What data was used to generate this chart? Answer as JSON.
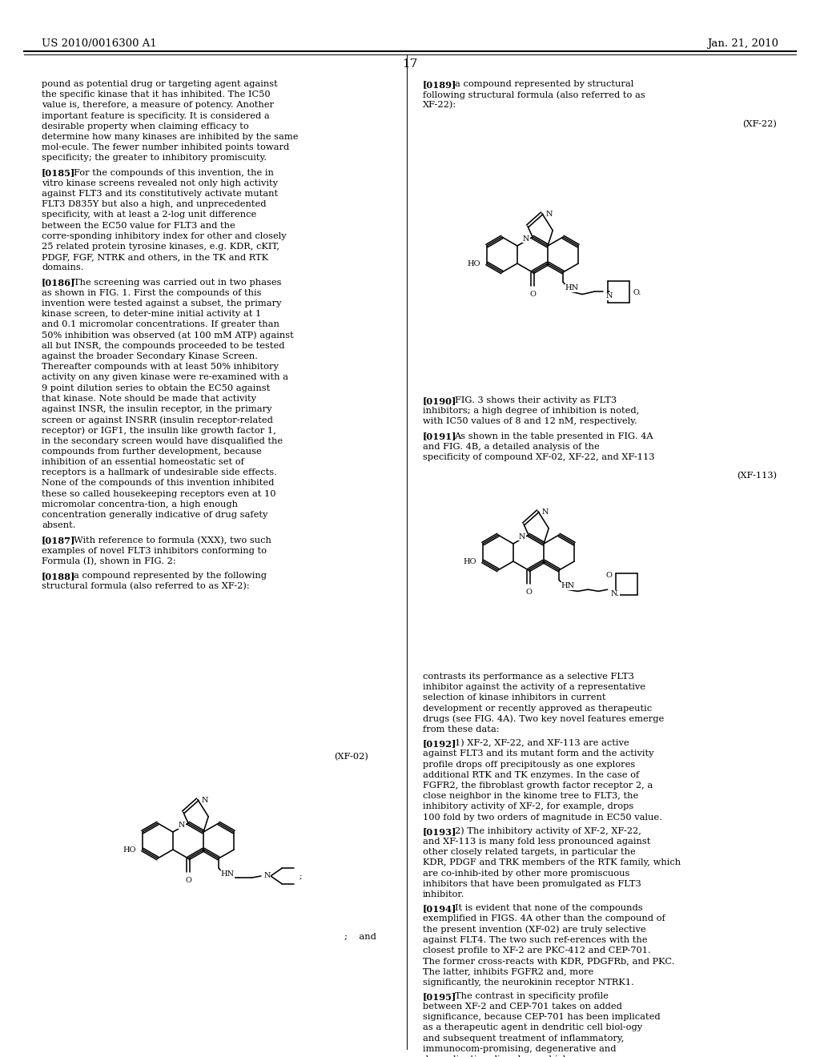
{
  "page_header_left": "US 2010/0016300 A1",
  "page_header_right": "Jan. 21, 2010",
  "page_number": "17",
  "bg": "#ffffff",
  "fg": "#000000",
  "left_paragraphs": [
    {
      "tag": "",
      "body": "pound as potential drug or targeting agent against the specific kinase that it has inhibited. The IC50 value is, therefore, a measure of potency. Another important feature is specificity. It is considered a desirable property when claiming efficacy to determine how many kinases are inhibited by the same mol-ecule. The fewer number inhibited points toward specificity; the greater to inhibitory promiscuity."
    },
    {
      "tag": "[0185]",
      "body": "For the compounds of this invention, the in vitro kinase screens revealed not only high activity against FLT3 and its constitutively activate mutant FLT3 D835Y but also a high, and unprecedented specificity, with at least a 2-log unit difference between the EC50 value for FLT3 and the corre-sponding inhibitory index for other and closely 25 related protein tyrosine kinases, e.g. KDR, cKIT, PDGF, FGF, NTRK and others, in the TK and RTK domains."
    },
    {
      "tag": "[0186]",
      "body": "The screening was carried out in two phases as shown in FIG. 1. First the compounds of this invention were tested against a subset, the primary kinase screen, to deter-mine initial activity at 1 and 0.1 micromolar concentrations. If greater than 50% inhibition was observed (at 100 mM ATP) against all but INSR, the compounds proceeded to be tested against the broader Secondary Kinase Screen. Thereafter compounds with at least 50% inhibitory activity on any given kinase were re-examined with a 9 point dilution series to obtain the EC50 against that kinase. Note should be made that activity against INSR, the insulin receptor, in the primary screen or against INSRR (insulin receptor-related receptor) or IGF1, the insulin like growth factor 1, in the secondary screen would have disqualified the compounds from further development, because inhibition of an essential homeostatic set of receptors is a hallmark of undesirable side effects. None of the compounds of this invention inhibited these so called housekeeping receptors even at 10 micromolar concentra-tion, a high enough concentration generally indicative of drug safety absent."
    },
    {
      "tag": "[0187]",
      "body": "With reference to formula (XXX), two such examples of novel FLT3 inhibitors conforming to Formula (I), shown in FIG. 2:"
    },
    {
      "tag": "[0188]",
      "body": "a compound represented by the following structural formula (also referred to as XF-2):"
    }
  ],
  "right_paragraphs": [
    {
      "tag": "[0189]",
      "body": "a compound represented by structural following structural formula (also referred to as XF-22):"
    },
    {
      "tag": "[0190]",
      "body": "FIG. 3 shows their activity as FLT3 inhibitors; a high degree of inhibition is noted, with IC50 values of 8 and 12 nM, respectively."
    },
    {
      "tag": "[0191]",
      "body": "As shown in the table presented in FIG. 4A and FIG. 4B, a detailed analysis of the specificity of compound XF-02, XF-22, and XF-113"
    },
    {
      "tag": "",
      "body": "contrasts its performance as a selective FLT3 inhibitor against the activity of a representative selection of kinase inhibitors in current development or recently approved as therapeutic drugs (see FIG. 4A). Two key novel features emerge from these data:"
    },
    {
      "tag": "[0192]",
      "body": "1) XF-2, XF-22, and XF-113 are active against FLT3 and its mutant form and the activity profile drops off precipitously as one explores additional RTK and TK enzymes. In the case of FGFR2, the fibroblast growth factor receptor 2, a close neighbor in the kinome tree to FLT3, the inhibitory activity of XF-2, for example, drops 100 fold by two orders of magnitude in EC50 value."
    },
    {
      "tag": "[0193]",
      "body": "2) The inhibitory activity of XF-2, XF-22, and XF-113 is many fold less pronounced against other closely related targets, in particular the KDR, PDGF and TRK members of the RTK family, which are co-inhib-ited by other more promiscuous inhibitors that have been promulgated as FLT3 inhibitor."
    },
    {
      "tag": "[0194]",
      "body": "It is evident that none of the compounds exemplified in FIGS. 4A other than the compound of the present invention (XF-02) are truly selective against FLT4. The two such ref-erences with the closest profile to XF-2 are PKC-412 and CEP-701. The former cross-reacts with KDR, PDGFRb, and PKC. The latter, inhibits FGFR2 and, more significantly, the neurokinin receptor NTRK1."
    },
    {
      "tag": "[0195]",
      "body": "The contrast in specificity profile between XF-2 and CEP-701 takes on added significance, because CEP-701 has been implicated as a therapeutic agent in dendritic cell biol-ogy and subsequent treatment of inflammatory, immunocom-promising, degenerative and demyelinating disorders, which"
    }
  ]
}
